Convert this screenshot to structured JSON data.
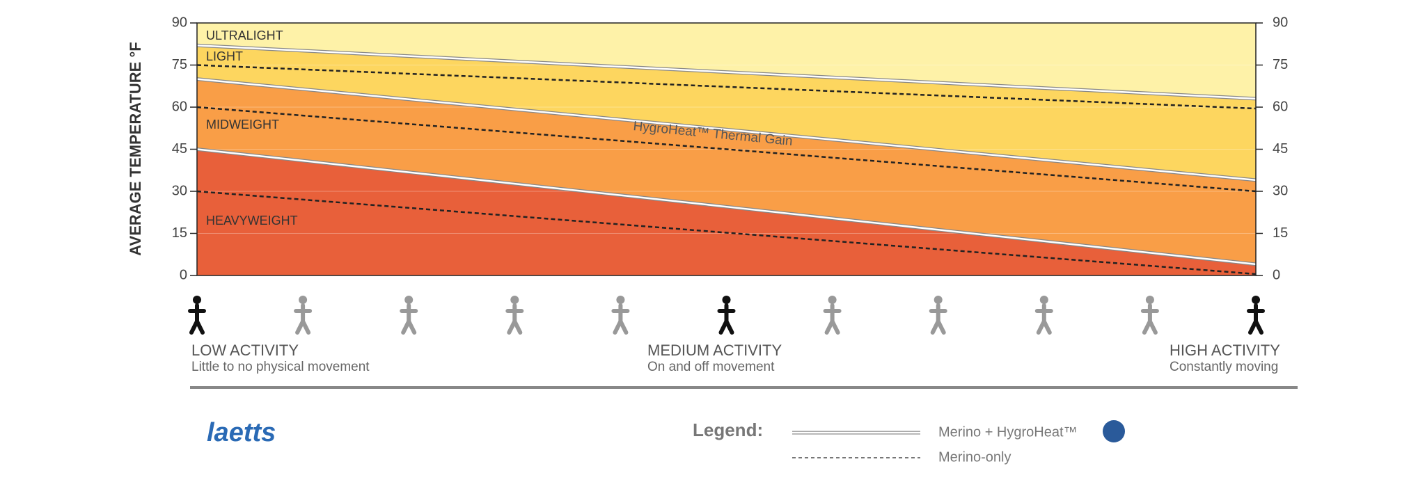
{
  "chart_data": {
    "type": "band-area",
    "y_label": "AVERAGE TEMPERATURE °F",
    "categories": [
      null,
      null,
      null,
      null,
      null,
      null,
      null,
      null,
      null,
      null,
      null
    ],
    "ylim": [
      0,
      90
    ],
    "yticks": [
      0,
      15,
      30,
      45,
      60,
      75,
      90
    ],
    "y2lim": [
      0,
      90
    ],
    "y2ticks": [
      0,
      15,
      30,
      45,
      60,
      75,
      90
    ],
    "grid": true,
    "bands": [
      {
        "name": "HEAVYWEIGHT",
        "color": "#e8603a"
      },
      {
        "name": "MIDWEIGHT",
        "color": "#f99e47"
      },
      {
        "name": "LIGHT",
        "color": "#fdd65f"
      },
      {
        "name": "ULTRALIGHT",
        "color": "#fef2a8"
      }
    ],
    "series": [
      {
        "style": "double",
        "values": [
          45,
          40.9,
          36.8,
          32.7,
          28.6,
          24.5,
          20.4,
          16.3,
          12.2,
          8.1,
          4
        ]
      },
      {
        "style": "double",
        "values": [
          70,
          66.4,
          62.8,
          59.2,
          55.6,
          52,
          48.4,
          44.8,
          41.2,
          37.6,
          34
        ]
      },
      {
        "style": "double",
        "values": [
          82,
          80.1,
          78.2,
          76.3,
          74.4,
          72.5,
          70.6,
          68.7,
          66.8,
          64.9,
          63
        ]
      },
      {
        "style": "dashed",
        "values": [
          30,
          27.05,
          24.1,
          21.15,
          18.2,
          15.25,
          12.3,
          9.35,
          6.4,
          3.45,
          0.5
        ]
      },
      {
        "style": "dashed",
        "values": [
          60,
          57,
          54,
          51,
          48,
          45,
          42,
          39,
          36,
          33,
          30
        ]
      },
      {
        "style": "dashed",
        "values": [
          75,
          73.45,
          71.9,
          70.35,
          68.8,
          67.25,
          65.7,
          64.15,
          62.6,
          61.05,
          59.5
        ]
      }
    ],
    "annotation": "HygroHeat™ Thermal Gain",
    "activity_levels": [
      {
        "title": "LOW ACTIVITY",
        "subtitle": "Little to no physical movement"
      },
      {
        "title": "MEDIUM ACTIVITY",
        "subtitle": "On and off movement"
      },
      {
        "title": "HIGH ACTIVITY",
        "subtitle": "Constantly moving"
      }
    ],
    "legend": {
      "title": "Legend:",
      "entries": [
        {
          "label": "Merino + HygroHeat™",
          "style": "double"
        },
        {
          "label": "Merino-only",
          "style": "dashed"
        }
      ]
    },
    "logo": "laetts"
  }
}
